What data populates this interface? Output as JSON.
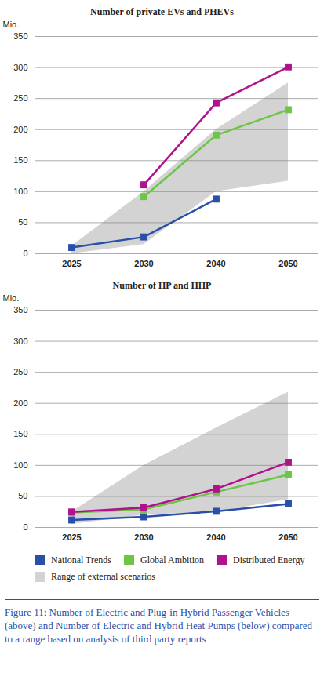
{
  "chart_data": [
    {
      "type": "line",
      "title": "Number of private EVs and PHEVs",
      "y_label": "Mio.",
      "categories": [
        "2025",
        "2030",
        "2040",
        "2050"
      ],
      "series": [
        {
          "name": "National Trends",
          "color": "#2a4fa8",
          "values": [
            10,
            27,
            88,
            null
          ]
        },
        {
          "name": "Global Ambition",
          "color": "#6cc644",
          "values": [
            null,
            92,
            191,
            232
          ]
        },
        {
          "name": "Distributed Energy",
          "color": "#b0128c",
          "values": [
            null,
            111,
            243,
            301
          ]
        }
      ],
      "range": {
        "name": "Range of external scenarios",
        "color": "#d3d3d3",
        "low": [
          0,
          15,
          100,
          117
        ],
        "high": [
          12,
          100,
          200,
          275
        ]
      },
      "ylim": [
        0,
        350
      ],
      "yticks": [
        0,
        50,
        100,
        150,
        200,
        250,
        300,
        350
      ],
      "grid": true,
      "marker": "square"
    },
    {
      "type": "line",
      "title": "Number of HP and HHP",
      "y_label": "Mio.",
      "categories": [
        "2025",
        "2030",
        "2040",
        "2050"
      ],
      "series": [
        {
          "name": "National Trends",
          "color": "#2a4fa8",
          "values": [
            12,
            17,
            26,
            38
          ]
        },
        {
          "name": "Global Ambition",
          "color": "#6cc644",
          "values": [
            24,
            29,
            57,
            85
          ]
        },
        {
          "name": "Distributed Energy",
          "color": "#b0128c",
          "values": [
            25,
            32,
            62,
            105
          ]
        }
      ],
      "range": {
        "name": "Range of external scenarios",
        "color": "#d3d3d3",
        "low": [
          5,
          20,
          25,
          45
        ],
        "high": [
          25,
          100,
          160,
          218
        ]
      },
      "ylim": [
        0,
        350
      ],
      "yticks": [
        0,
        50,
        100,
        150,
        200,
        250,
        300,
        350
      ],
      "grid": true,
      "marker": "square"
    }
  ],
  "caption": "Figure 11: Number of Electric and Plug-in Hybrid Passenger Vehicles (above) and Number of Electric and Hybrid Heat Pumps (below) compared to a range based on analysis of third party reports"
}
